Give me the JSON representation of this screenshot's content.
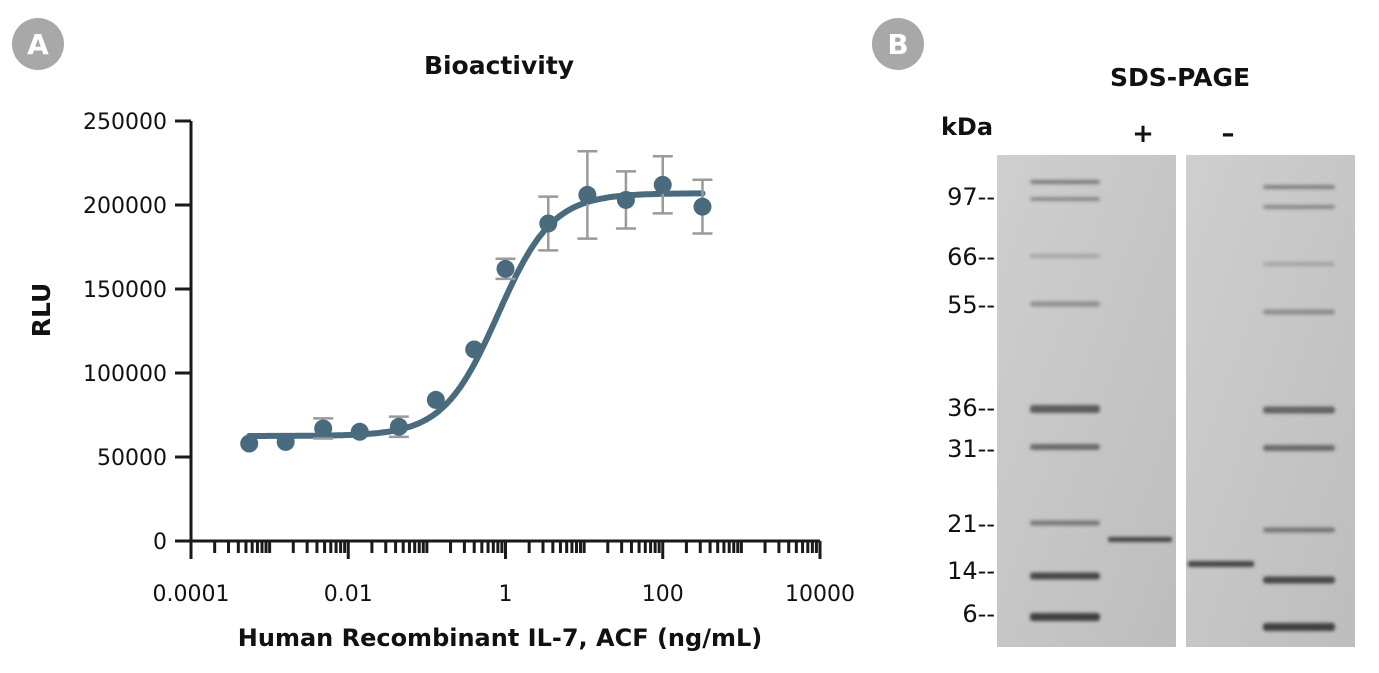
{
  "panels": {
    "a_label": "A",
    "b_label": "B"
  },
  "chart_data": [
    {
      "type": "scatter",
      "title": "Bioactivity",
      "xlabel": "Human Recombinant IL-7, ACF (ng/mL)",
      "ylabel": "RLU",
      "xscale": "log",
      "xlim": [
        0.0001,
        10000
      ],
      "ylim": [
        0,
        250000
      ],
      "x_ticks": [
        "0.0001",
        "0.01",
        "1",
        "100",
        "10000"
      ],
      "y_ticks": [
        "250000",
        "200000",
        "150000",
        "100000",
        "50000",
        "0"
      ],
      "y_tick_values": [
        250000,
        200000,
        150000,
        100000,
        50000,
        0
      ],
      "x_tick_values": [
        0.0001,
        0.01,
        1,
        100,
        10000
      ],
      "grid": false,
      "fit_line": "4-parameter logistic",
      "colors": {
        "marker": "#4a6a7e",
        "error_bar": "#9a9a9a",
        "axis": "#1a1a1a"
      },
      "series": [
        {
          "x": [
            0.00055,
            0.0016,
            0.0048,
            0.014,
            0.044,
            0.13,
            0.4,
            1.0,
            3.5,
            11,
            34,
            100,
            320
          ],
          "y": [
            58000,
            59000,
            67000,
            65000,
            68000,
            84000,
            114000,
            162000,
            189000,
            206000,
            203000,
            212000,
            199000
          ],
          "err": [
            0,
            0,
            6000,
            0,
            6000,
            0,
            0,
            6000,
            16000,
            26000,
            17000,
            17000,
            16000
          ]
        }
      ]
    },
    {
      "type": "gel",
      "title": "SDS-PAGE",
      "unit_label": "kDa",
      "lane_labels": [
        "+",
        "–"
      ],
      "markers": [
        "97--",
        "66--",
        "55--",
        "36--",
        "31--",
        "21--",
        "14--",
        "6--"
      ],
      "marker_kda": [
        97,
        66,
        55,
        36,
        31,
        21,
        14,
        6
      ],
      "colors": {
        "gel_background": "#c4c4c4",
        "band": "#3a3a3a"
      }
    }
  ]
}
